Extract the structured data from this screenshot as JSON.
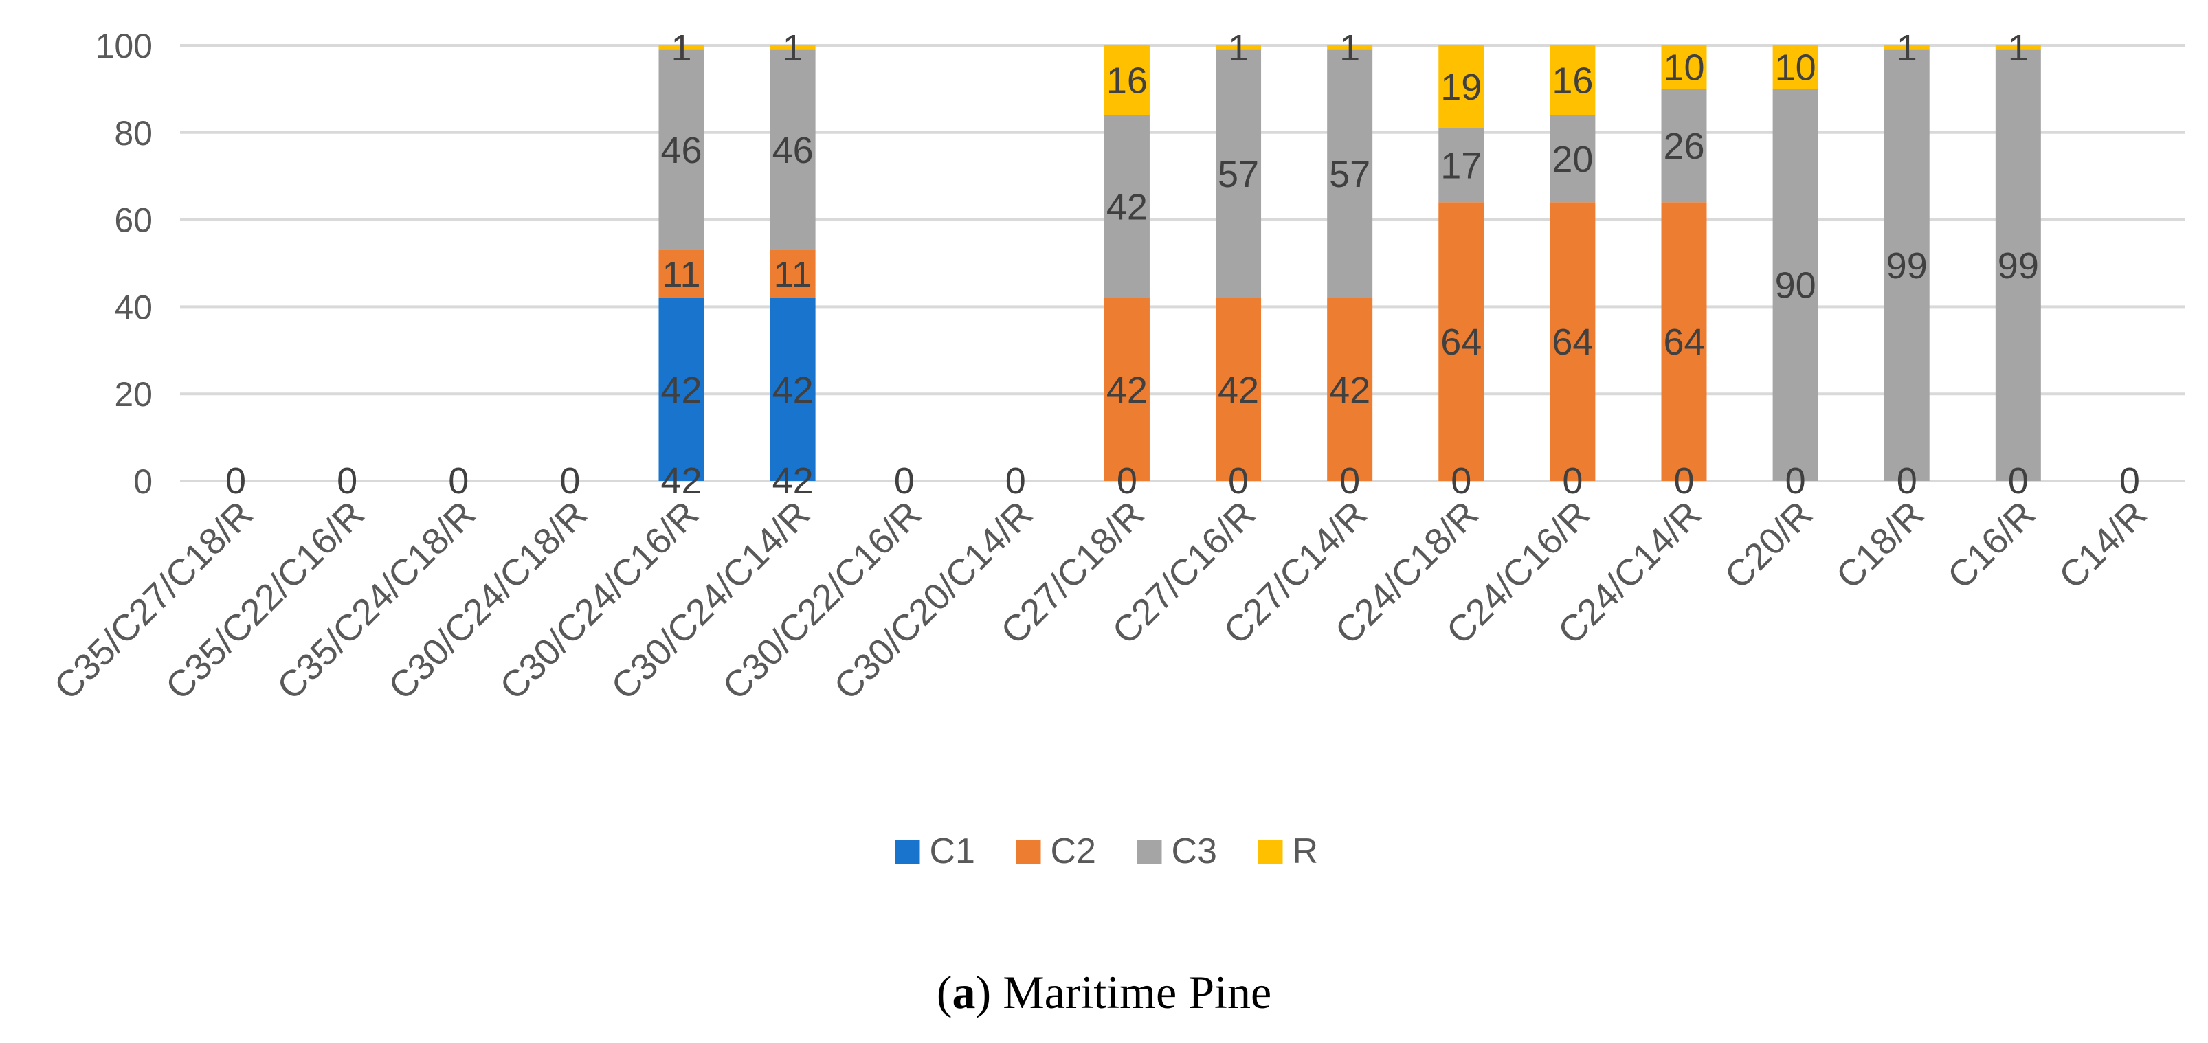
{
  "chart_data": {
    "type": "bar",
    "stacked": true,
    "categories": [
      "C35/C27/C18/R",
      "C35/C22/C16/R",
      "C35/C24/C18/R",
      "C30/C24/C18/R",
      "C30/C24/C16/R",
      "C30/C24/C14/R",
      "C30/C22/C16/R",
      "C30/C20/C14/R",
      "C27/C18/R",
      "C27/C16/R",
      "C27/C14/R",
      "C24/C18/R",
      "C24/C16/R",
      "C24/C14/R",
      "C20/R",
      "C18/R",
      "C16/R",
      "C14/R"
    ],
    "series": [
      {
        "name": "C1",
        "color": "#1874CD",
        "values": [
          0,
          0,
          0,
          0,
          42,
          42,
          0,
          0,
          0,
          0,
          0,
          0,
          0,
          0,
          0,
          0,
          0,
          0
        ]
      },
      {
        "name": "C2",
        "color": "#ED7D31",
        "values": [
          0,
          0,
          0,
          0,
          11,
          11,
          0,
          0,
          42,
          42,
          42,
          64,
          64,
          64,
          0,
          0,
          0,
          0
        ]
      },
      {
        "name": "C3",
        "color": "#A5A5A5",
        "values": [
          0,
          0,
          0,
          0,
          46,
          46,
          0,
          0,
          42,
          57,
          57,
          17,
          20,
          26,
          90,
          99,
          99,
          0
        ]
      },
      {
        "name": "R",
        "color": "#FFC000",
        "values": [
          0,
          0,
          0,
          0,
          1,
          1,
          0,
          0,
          16,
          1,
          1,
          19,
          16,
          10,
          10,
          1,
          1,
          0
        ]
      }
    ],
    "ylim": [
      0,
      100
    ],
    "yticks": [
      0,
      20,
      40,
      60,
      80,
      100
    ],
    "grid": true,
    "legend": "bottom",
    "title": "",
    "xlabel": "",
    "ylabel": ""
  },
  "caption": {
    "label": "a",
    "text": "Maritime Pine"
  }
}
